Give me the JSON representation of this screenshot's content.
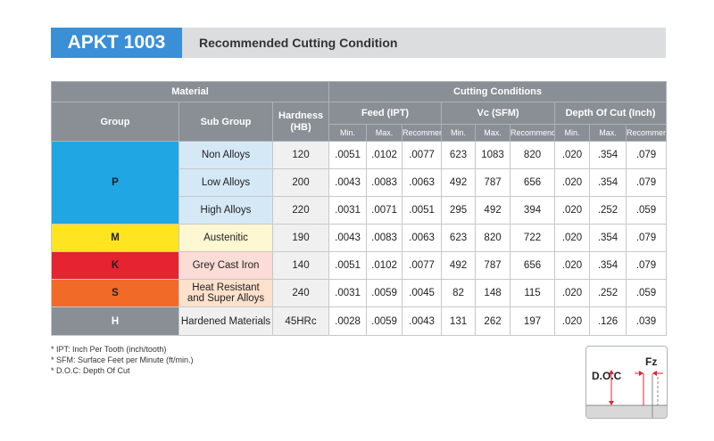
{
  "header": {
    "code": "APKT 1003",
    "title": "Recommended Cutting Condition"
  },
  "table": {
    "material_label": "Material",
    "conditions_label": "Cutting Conditions",
    "group_label": "Group",
    "subgroup_label": "Sub Group",
    "hardness_label": "Hardness (HB)",
    "feed_label": "Feed (IPT)",
    "vc_label": "Vc (SFM)",
    "doc_label": "Depth Of Cut (Inch)",
    "min_label": "Min.",
    "max_label": "Max.",
    "recommend_label": "Recommend",
    "groups": [
      {
        "name": "P",
        "color": "#1fa6e3"
      },
      {
        "name": "M",
        "color": "#ffe51f"
      },
      {
        "name": "K",
        "color": "#e52331"
      },
      {
        "name": "S",
        "color": "#f16a27"
      },
      {
        "name": "H",
        "color": "#8a8f96"
      }
    ],
    "rows": [
      {
        "sub": "Non Alloys",
        "hardness": "120",
        "feed": [
          ".0051",
          ".0102",
          ".0077"
        ],
        "vc": [
          "623",
          "1083",
          "820"
        ],
        "doc": [
          ".020",
          ".354",
          ".079"
        ]
      },
      {
        "sub": "Low Alloys",
        "hardness": "200",
        "feed": [
          ".0043",
          ".0083",
          ".0063"
        ],
        "vc": [
          "492",
          "787",
          "656"
        ],
        "doc": [
          ".020",
          ".354",
          ".079"
        ]
      },
      {
        "sub": "High Alloys",
        "hardness": "220",
        "feed": [
          ".0031",
          ".0071",
          ".0051"
        ],
        "vc": [
          "295",
          "492",
          "394"
        ],
        "doc": [
          ".020",
          ".252",
          ".059"
        ]
      },
      {
        "sub": "Austenitic",
        "hardness": "190",
        "feed": [
          ".0043",
          ".0083",
          ".0063"
        ],
        "vc": [
          "623",
          "820",
          "722"
        ],
        "doc": [
          ".020",
          ".354",
          ".079"
        ]
      },
      {
        "sub": "Grey Cast Iron",
        "hardness": "140",
        "feed": [
          ".0051",
          ".0102",
          ".0077"
        ],
        "vc": [
          "492",
          "787",
          "656"
        ],
        "doc": [
          ".020",
          ".354",
          ".079"
        ]
      },
      {
        "sub_line1": "Heat Resistant",
        "sub_line2": "and Super Alloys",
        "hardness": "240",
        "feed": [
          ".0031",
          ".0059",
          ".0045"
        ],
        "vc": [
          "82",
          "148",
          "115"
        ],
        "doc": [
          ".020",
          ".252",
          ".059"
        ]
      },
      {
        "sub": "Hardened Materials",
        "hardness": "45HRc",
        "feed": [
          ".0028",
          ".0059",
          ".0043"
        ],
        "vc": [
          "131",
          "262",
          "197"
        ],
        "doc": [
          ".020",
          ".126",
          ".039"
        ]
      }
    ]
  },
  "notes": [
    "* IPT: Inch Per Tooth (inch/tooth)",
    "* SFM: Surface Feet per Minute (ft/min.)",
    "* D.O.C: Depth Of Cut"
  ],
  "diagram": {
    "doc_label": "D.O.C",
    "fz_label": "Fz"
  }
}
